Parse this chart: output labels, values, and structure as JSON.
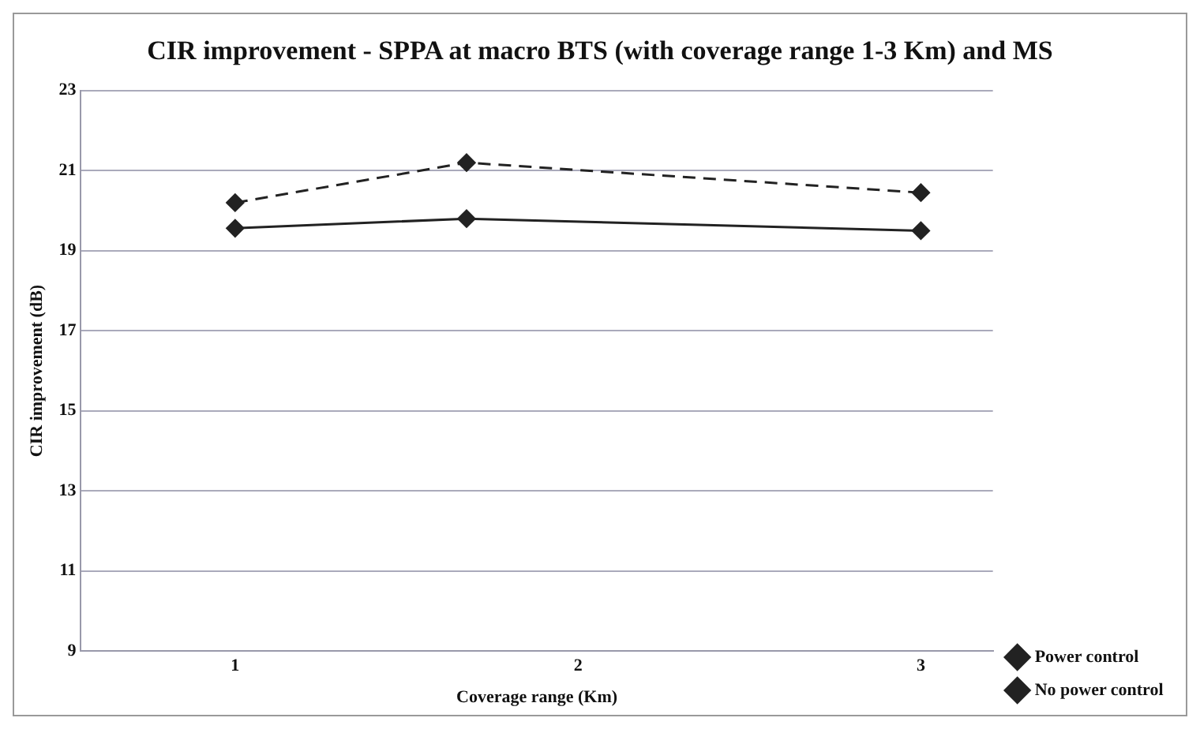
{
  "chart_data": {
    "type": "line",
    "title": "CIR improvement - SPPA at macro BTS (with coverage range 1-3 Km) and MS",
    "xlabel": "Coverage range (Km)",
    "ylabel": "CIR improvement (dB)",
    "x": [
      1,
      1.675,
      3
    ],
    "series": [
      {
        "name": "Power control",
        "color": "#222222",
        "values": [
          20.2,
          21.2,
          20.45
        ],
        "line_style": "dashed"
      },
      {
        "name": "No power control",
        "color": "#222222",
        "values": [
          19.56,
          19.8,
          19.5
        ],
        "line_style": "solid"
      }
    ],
    "xlim": [
      0.55,
      3.21
    ],
    "xticks": [
      1,
      2,
      3
    ],
    "ylim": [
      9,
      23
    ],
    "yticks": [
      9,
      11,
      13,
      15,
      17,
      19,
      21,
      23
    ],
    "grid": "y",
    "legend": "bottom right",
    "marker": "diamond"
  }
}
